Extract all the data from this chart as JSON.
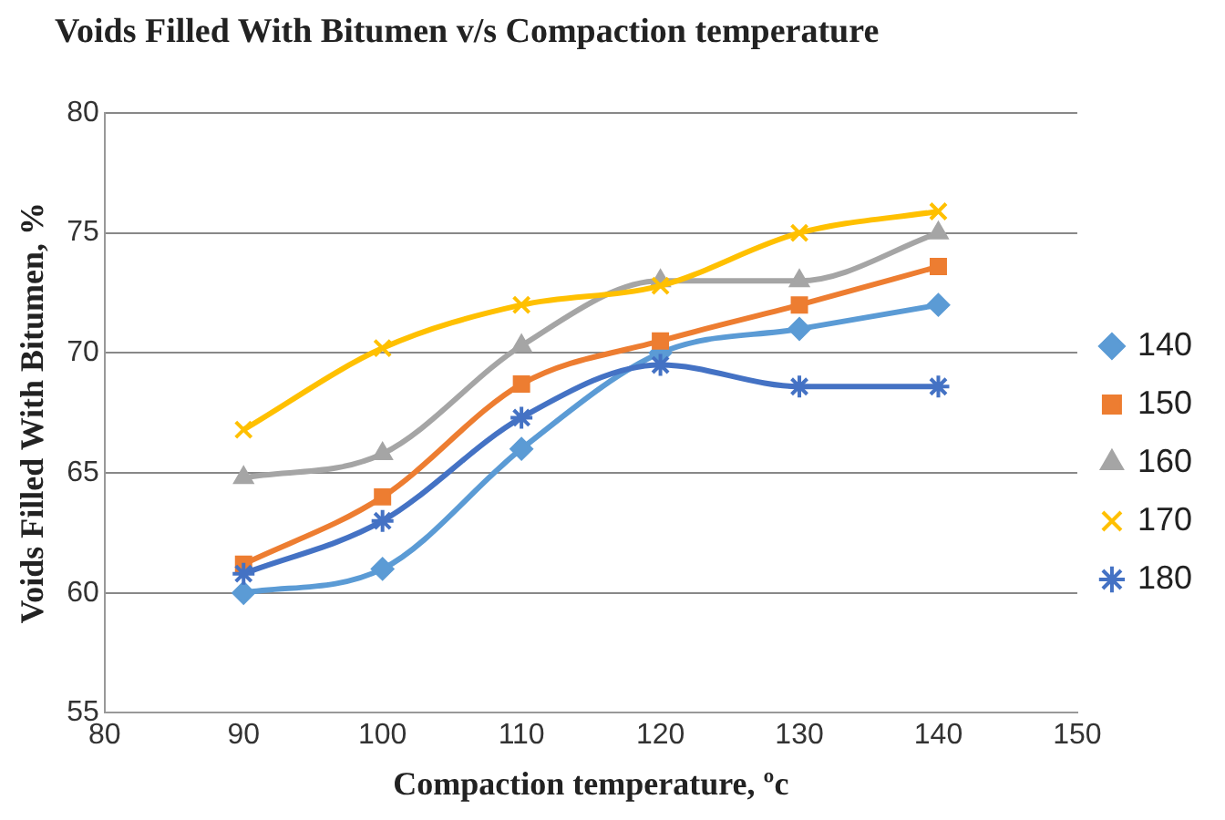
{
  "chart_data": {
    "type": "line",
    "title": "Voids Filled With Bitumen v/s Compaction temperature",
    "xlabel": "Compaction temperature, ºc",
    "ylabel": "Voids Filled With Bitumen, %",
    "x": [
      90,
      100,
      110,
      120,
      130,
      140
    ],
    "series": [
      {
        "name": "140",
        "color": "#5b9bd5",
        "marker": "diamond",
        "values": [
          60.0,
          61.0,
          66.0,
          70.0,
          71.0,
          72.0
        ]
      },
      {
        "name": "150",
        "color": "#ed7d31",
        "marker": "square",
        "values": [
          61.2,
          64.0,
          68.7,
          70.5,
          72.0,
          73.6
        ]
      },
      {
        "name": "160",
        "color": "#a5a5a5",
        "marker": "triangle",
        "values": [
          64.8,
          65.8,
          70.3,
          73.0,
          73.0,
          75.0
        ]
      },
      {
        "name": "170",
        "color": "#ffc000",
        "marker": "cross",
        "values": [
          66.8,
          70.2,
          72.0,
          72.8,
          75.0,
          75.9
        ]
      },
      {
        "name": "180",
        "color": "#4472c4",
        "marker": "cross",
        "values": [
          60.8,
          63.0,
          67.3,
          69.5,
          68.6,
          68.6
        ]
      }
    ],
    "xlim": [
      80,
      150
    ],
    "xticks": [
      80,
      90,
      100,
      110,
      120,
      130,
      140,
      150
    ],
    "ylim": [
      55,
      80
    ],
    "yticks": [
      55,
      60,
      65,
      70,
      75,
      80
    ],
    "grid": "y",
    "legend": "right",
    "line_style": "solid"
  }
}
